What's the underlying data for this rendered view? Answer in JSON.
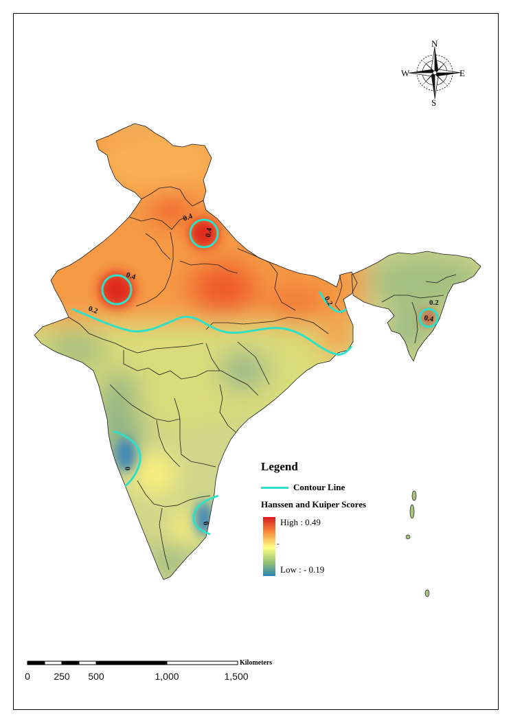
{
  "legend": {
    "title": "Legend",
    "contour_label": "Contour Line",
    "scores_title": "Hanssen and Kuiper Scores",
    "high_label": "High : 0.49",
    "low_label": "Low : - 0.19",
    "mid_mark": "-",
    "contour_color": "#2fe0c8",
    "ramp_colors": [
      "#d7191c",
      "#f58a3a",
      "#ffff85",
      "#8fbf74",
      "#2b83ba"
    ]
  },
  "contour_labels": {
    "west_peak": "0.4",
    "north_peak": "0.4",
    "north_peak_top": "0.4",
    "main_line_west": "0.2",
    "main_line_east": "0.2",
    "northeast_line": "0.2",
    "northeast_peak": "0.4",
    "southwest": "0",
    "southeast": "0"
  },
  "scale_bar": {
    "unit": "Kilometers",
    "labels": [
      "0",
      "250",
      "500",
      "1,000",
      "1,500"
    ]
  },
  "compass": {
    "n": "N",
    "s": "S",
    "e": "E",
    "w": "W"
  }
}
